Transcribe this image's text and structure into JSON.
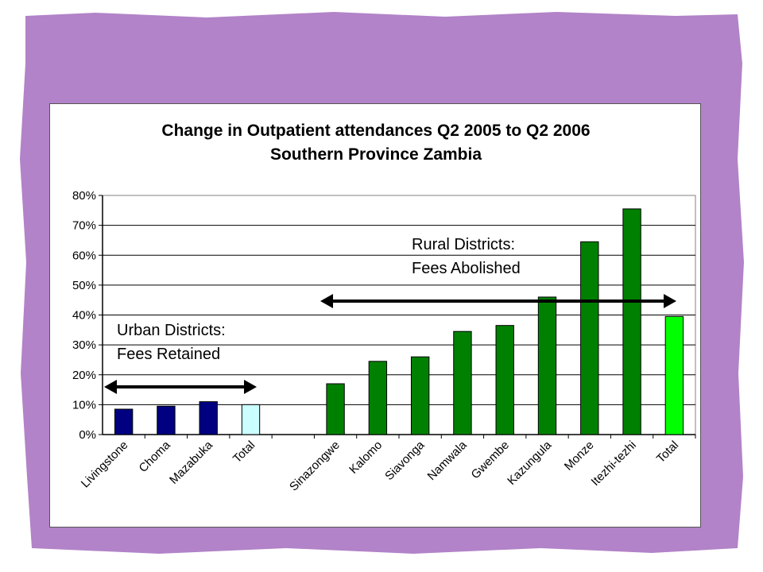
{
  "frame": {
    "background": "#B283C8",
    "outer": "#ffffff"
  },
  "chart_data": {
    "type": "bar",
    "title": [
      "Change in Outpatient attendances Q2 2005 to Q2 2006",
      "Southern Province Zambia"
    ],
    "xlabel": "",
    "ylabel": "",
    "ylim": [
      0,
      80
    ],
    "yticks": [
      "0%",
      "10%",
      "20%",
      "30%",
      "40%",
      "50%",
      "60%",
      "70%",
      "80%"
    ],
    "grid": true,
    "legend": "none",
    "categories": [
      "Livingstone",
      "Choma",
      "Mazabuka",
      "Total",
      "",
      "Sinazongwe",
      "Kalomo",
      "Siavonga",
      "Namwala",
      "Gwembe",
      "Kazungula",
      "Monze",
      "Itezhi-tezhi",
      "Total"
    ],
    "values": [
      8.5,
      9.5,
      11,
      10,
      null,
      17,
      24.5,
      26,
      34.5,
      36.5,
      46,
      64.5,
      75.5,
      39.5
    ],
    "colors": [
      "#000080",
      "#000080",
      "#000080",
      "#CCFFFF",
      null,
      "#008000",
      "#008000",
      "#008000",
      "#008000",
      "#008000",
      "#008000",
      "#008000",
      "#008000",
      "#00FF00"
    ],
    "annotations": {
      "urban": [
        "Urban Districts:",
        "Fees Retained"
      ],
      "rural": [
        "Rural Districts:",
        "Fees Abolished"
      ]
    }
  }
}
